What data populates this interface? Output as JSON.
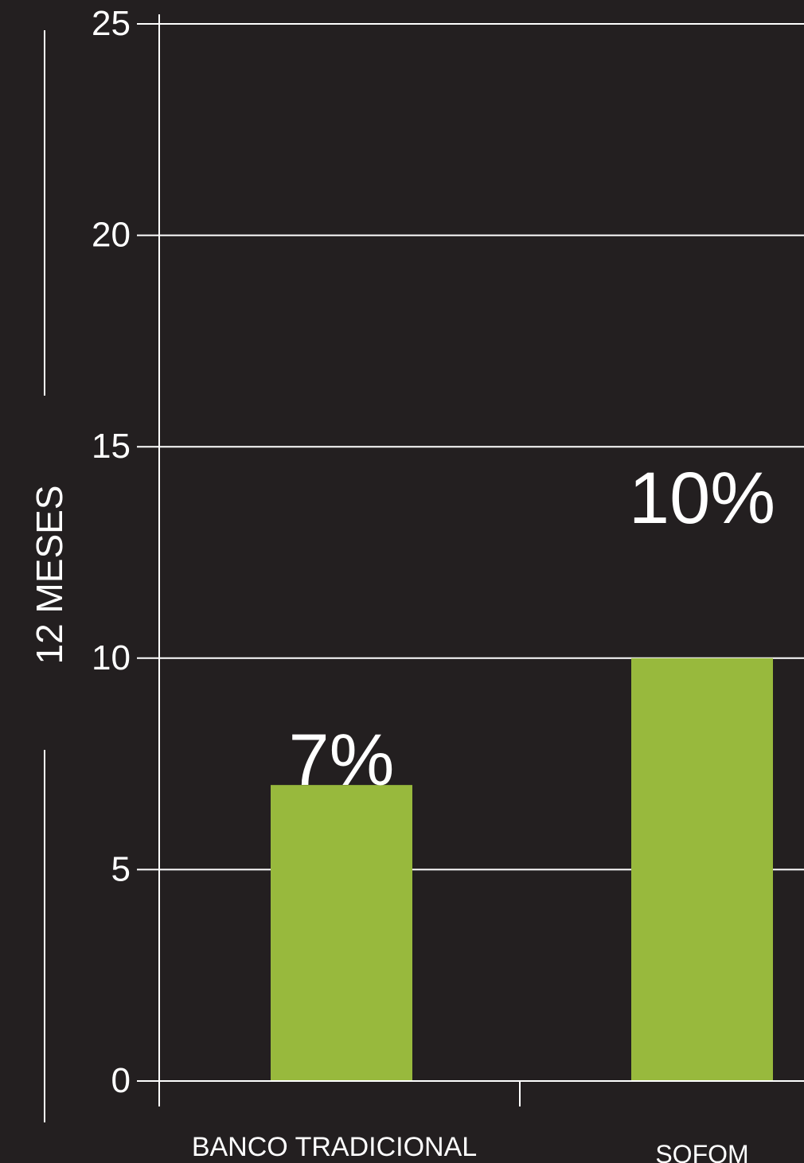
{
  "colors": {
    "background": "#231f20",
    "bar": "#98b93d",
    "axis": "#ffffff",
    "grid": "#ffffff",
    "text": "#ffffff"
  },
  "chart_data": {
    "type": "bar",
    "title": "",
    "xlabel": "",
    "ylabel": "12 MESES",
    "ylim": [
      0,
      25
    ],
    "yticks": [
      0,
      5,
      10,
      15,
      20,
      25
    ],
    "ytick_labels": [
      "0",
      "5",
      "10",
      "15",
      "20",
      "25"
    ],
    "categories": [
      "BANCO TRADICIONAL",
      "SOFOM"
    ],
    "values": [
      7,
      10
    ],
    "data_labels": [
      "7%",
      "10%"
    ],
    "grid": true,
    "legend": "none"
  }
}
